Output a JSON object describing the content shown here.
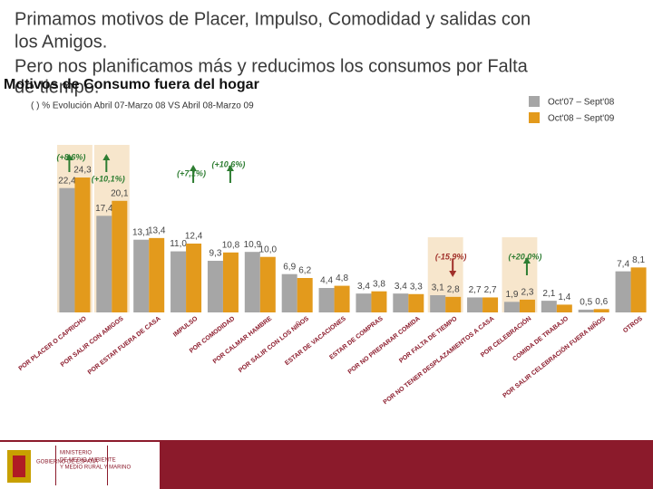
{
  "chart_data": {
    "type": "bar",
    "title_lines": [
      "Primamos motivos de Placer, Impulso, Comodidad y salidas con",
      "los Amigos.",
      "Pero nos planificamos más y reducimos los consumos por Falta",
      "de tiempo."
    ],
    "heading": "Motivos de Consumo fuera del hogar",
    "subtitle": "( ) % Evolución Abril 07-Marzo 08 VS Abril 08-Marzo 09",
    "categories": [
      "POR PLACER O CAPRICHO",
      "POR SALIR CON AMIGOS",
      "POR ESTAR FUERA DE CASA",
      "IMPULSO",
      "POR COMODIDAD",
      "POR CALMAR HAMBRE",
      "POR SALIR CON LOS NIÑOS",
      "ESTAR DE VACACIONES",
      "ESTAR DE COMPRAS",
      "POR NO PREPARAR COMIDA",
      "POR FALTA DE TIEMPO",
      "POR NO TENER DESPLAZAMIENTOS A CASA",
      "POR CELEBRACIÓN",
      "COMIDA DE TRABAJO",
      "POR SALIR CELEBRACIÓN FUERA NIÑOS",
      "OTROS"
    ],
    "series": [
      {
        "name": "Oct'07 – Sept'08",
        "color": "#a6a6a6",
        "values": [
          22.4,
          17.4,
          13.1,
          11.0,
          9.3,
          10.9,
          6.9,
          4.4,
          3.4,
          3.4,
          3.1,
          2.7,
          1.9,
          2.1,
          0.5,
          7.4
        ],
        "value_labels": [
          "22,4",
          "17,4",
          "13,1",
          "11,0",
          "9,3",
          "10,9",
          "6,9",
          "4,4",
          "3,4",
          "3,4",
          "3,1",
          "2,7",
          "1,9",
          "2,1",
          "0,5",
          "7,4"
        ]
      },
      {
        "name": "Oct'08 – Sept'09",
        "color": "#e39a1c",
        "values": [
          24.3,
          20.1,
          13.4,
          12.4,
          10.8,
          10.0,
          6.2,
          4.8,
          3.8,
          3.3,
          2.8,
          2.7,
          2.3,
          1.4,
          0.6,
          8.1
        ],
        "value_labels": [
          "24,3",
          "20,1",
          "13,4",
          "12,4",
          "10,8",
          "10,0",
          "6,2",
          "4,8",
          "3,8",
          "3,3",
          "2,8",
          "2,7",
          "2,3",
          "1,4",
          "0,6",
          "8,1"
        ]
      }
    ],
    "annotations": [
      {
        "text": "(+8,6%)",
        "category": 0,
        "direction": "up",
        "highlight": true
      },
      {
        "text": "(+10,1%)",
        "category": 1,
        "direction": "up",
        "highlight": true
      },
      {
        "text": "(+7,1%)",
        "category": 3,
        "direction": "up",
        "highlight": false
      },
      {
        "text": "(+10,6%)",
        "category": 4,
        "direction": "up",
        "highlight": false
      },
      {
        "text": "(-15,9%)",
        "category": 10,
        "direction": "down",
        "highlight": true
      },
      {
        "text": "(+20,0%)",
        "category": 12,
        "direction": "up",
        "highlight": true
      }
    ],
    "footer": {
      "gov": "GOBIERNO DE ESPAÑA",
      "ministry_lines": [
        "MINISTERIO",
        "DE MEDIO AMBIENTE",
        "Y MEDIO RURAL Y MARINO"
      ]
    }
  }
}
